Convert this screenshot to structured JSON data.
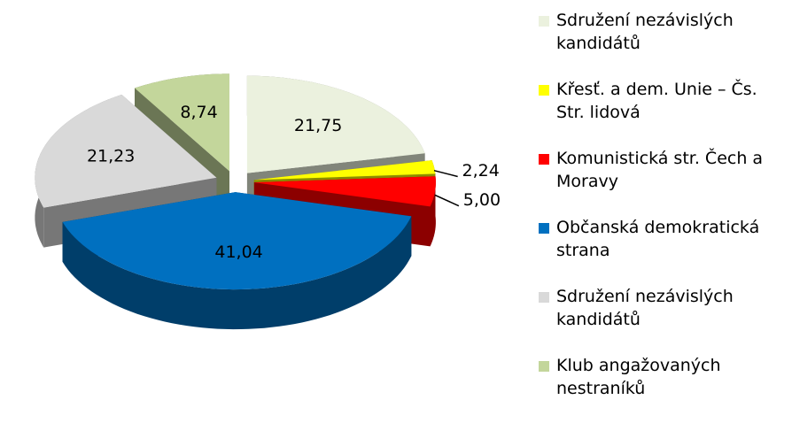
{
  "chart_data": {
    "type": "pie",
    "categories": [
      "Sdružení nezávislých kandidátů",
      "Křesť. a dem. Unie – Čs. Str. lidová",
      "Komunistická str. Čech a Moravy",
      "Občanská demokratická strana",
      "Sdružení nezávislých kandidátů",
      "Klub angažovaných nestraníků"
    ],
    "values": [
      21.75,
      2.24,
      5.0,
      41.04,
      21.23,
      8.74
    ],
    "value_labels": [
      "21,75",
      "2,24",
      "5,00",
      "41,04",
      "21,23",
      "8,74"
    ],
    "colors": [
      "#ebf1de",
      "#ffff00",
      "#ff0000",
      "#0070c0",
      "#d9d9d9",
      "#c3d69b"
    ],
    "legend": "right"
  }
}
